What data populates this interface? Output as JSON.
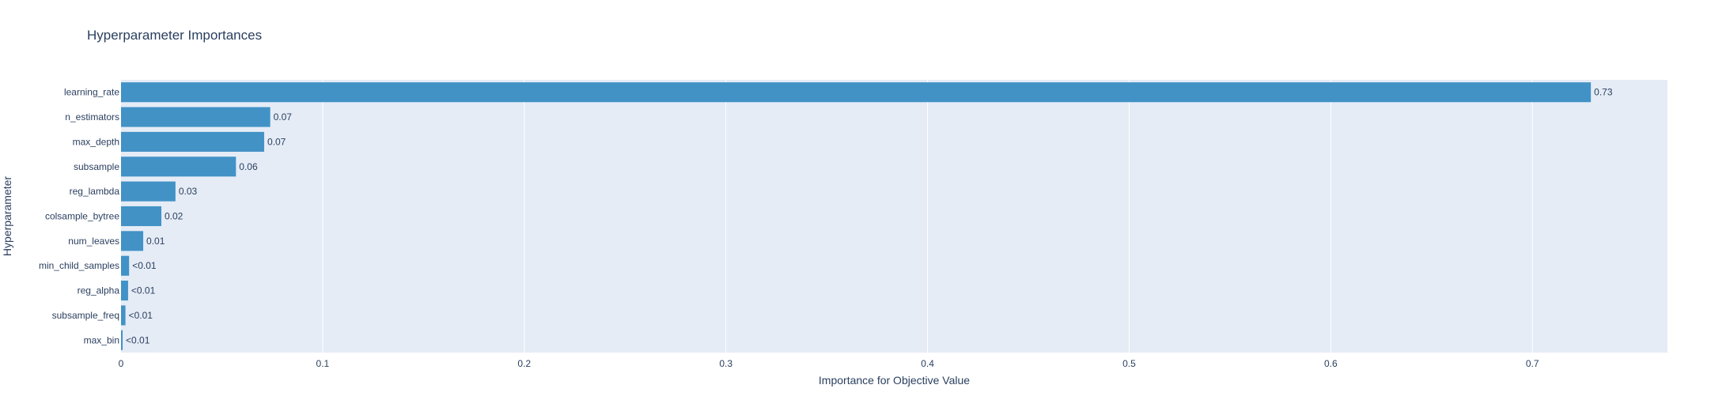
{
  "chart_data": {
    "type": "bar",
    "orientation": "horizontal",
    "title": "Hyperparameter Importances",
    "xlabel": "Importance for Objective Value",
    "ylabel": "Hyperparameter",
    "xlim": [
      0,
      0.767
    ],
    "xticks": [
      0,
      0.1,
      0.2,
      0.3,
      0.4,
      0.5,
      0.6,
      0.7
    ],
    "xtick_labels": [
      "0",
      "0.1",
      "0.2",
      "0.3",
      "0.4",
      "0.5",
      "0.6",
      "0.7"
    ],
    "grid": true,
    "legend": "none",
    "colors": {
      "bar": "#4292c6",
      "plot_bg": "#e5ecf6",
      "grid": "#ffffff",
      "text": "#2a3f5f"
    },
    "categories": [
      "learning_rate",
      "n_estimators",
      "max_depth",
      "subsample",
      "reg_lambda",
      "colsample_bytree",
      "num_leaves",
      "min_child_samples",
      "reg_alpha",
      "subsample_freq",
      "max_bin"
    ],
    "values": [
      0.729,
      0.074,
      0.071,
      0.057,
      0.027,
      0.02,
      0.011,
      0.004,
      0.0035,
      0.0022,
      0.0008
    ],
    "data_labels": [
      "0.73",
      "0.07",
      "0.07",
      "0.06",
      "0.03",
      "0.02",
      "0.01",
      "<0.01",
      "<0.01",
      "<0.01",
      "<0.01"
    ]
  }
}
